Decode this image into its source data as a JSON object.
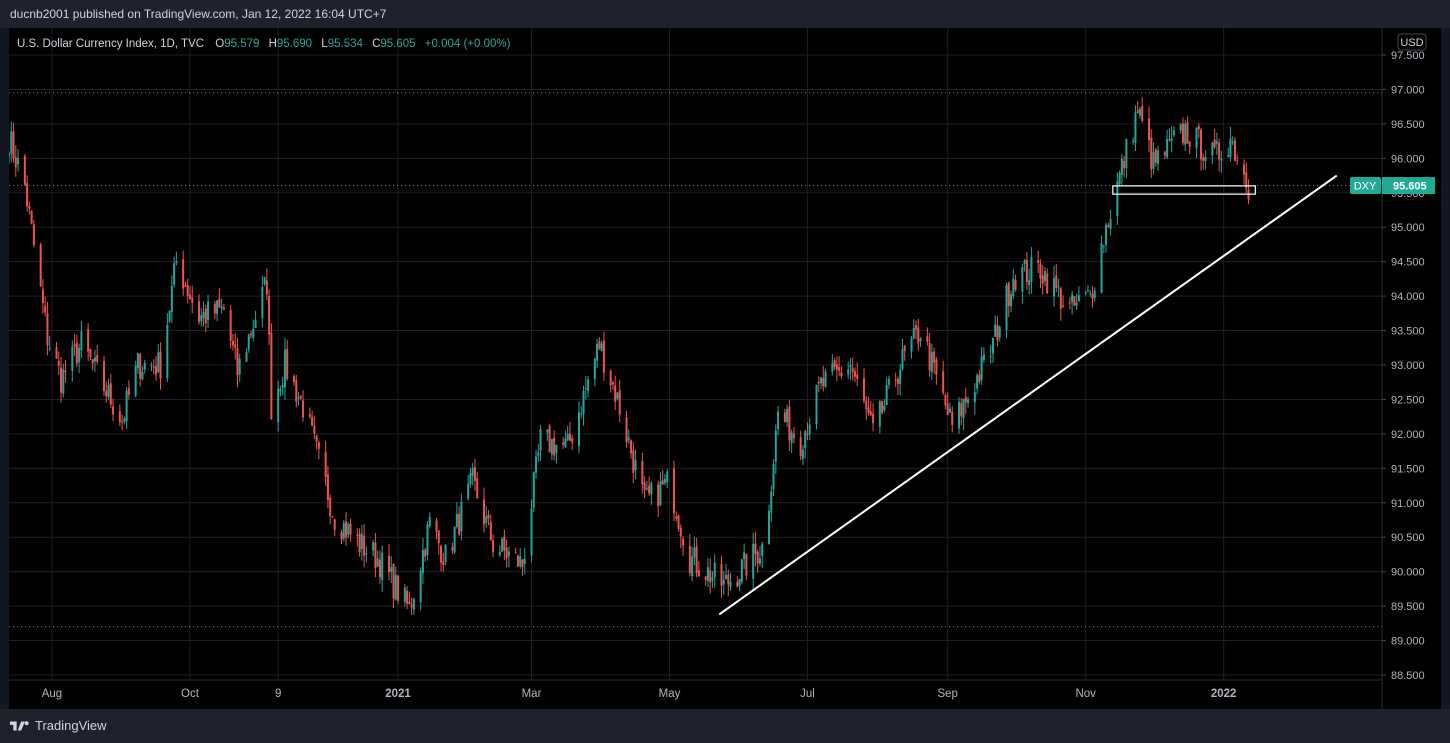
{
  "header": {
    "publisher_line": "ducnb2001 published on TradingView.com, Jan 12, 2022 16:04 UTC+7"
  },
  "legend": {
    "symbol": "U.S. Dollar Currency Index, 1D, TVC",
    "o_label": "O",
    "o_value": "95.579",
    "h_label": "H",
    "h_value": "95.690",
    "l_label": "L",
    "l_value": "95.534",
    "c_label": "C",
    "c_value": "95.605",
    "change": "+0.004 (+0.00%)"
  },
  "currency_label": "USD",
  "price_tag": {
    "symbol": "DXY",
    "value": "95.605"
  },
  "footer": {
    "brand": "TradingView"
  },
  "colors": {
    "up": "#26a69a",
    "down": "#ef5350",
    "tag": "#22ab94",
    "trendline": "#ffffff",
    "axis_text": "#b2b5be",
    "dotted": "#787b86"
  },
  "chart_data": {
    "type": "candlestick",
    "title": "U.S. Dollar Currency Index, 1D, TVC",
    "ylim": [
      88.5,
      97.5
    ],
    "y_ticks": [
      "97.500",
      "97.000",
      "96.500",
      "96.000",
      "95.500",
      "95.000",
      "94.500",
      "94.000",
      "93.500",
      "93.000",
      "92.500",
      "92.000",
      "91.500",
      "91.000",
      "90.500",
      "90.000",
      "89.500",
      "89.000",
      "88.500"
    ],
    "x_labels": [
      "Aug",
      "Oct",
      "9",
      "2021",
      "Mar",
      "May",
      "Jul",
      "Sep",
      "Nov",
      "2022"
    ],
    "x_label_dates": [
      "2020-08-01",
      "2020-10-01",
      "2020-11-09",
      "2021-01-01",
      "2021-03-01",
      "2021-05-01",
      "2021-07-01",
      "2021-09-01",
      "2021-11-01",
      "2022-01-01"
    ],
    "bold_labels": [
      "2021",
      "2022"
    ],
    "x_range": [
      "2020-07-13",
      "2022-03-12"
    ],
    "horizontal_levels": [
      96.95,
      89.2,
      95.605
    ],
    "last_price": 95.605,
    "trendline": {
      "start": [
        "2021-05-23",
        89.38
      ],
      "end": [
        "2022-02-20",
        95.75
      ]
    },
    "support_box": {
      "start": "2021-11-13",
      "end": "2022-01-15",
      "top": 95.6,
      "bottom": 95.48
    },
    "series": [
      {
        "waypoints": [
          [
            "2020-07-13",
            96.3
          ],
          [
            "2020-07-20",
            95.6
          ],
          [
            "2020-07-30",
            93.4
          ],
          [
            "2020-08-05",
            92.8
          ],
          [
            "2020-08-14",
            93.3
          ],
          [
            "2020-08-22",
            92.8
          ],
          [
            "2020-09-01",
            92.2
          ],
          [
            "2020-09-08",
            93.0
          ],
          [
            "2020-09-18",
            93.0
          ],
          [
            "2020-09-25",
            94.5
          ],
          [
            "2020-10-05",
            93.7
          ],
          [
            "2020-10-16",
            93.8
          ],
          [
            "2020-10-22",
            92.9
          ],
          [
            "2020-11-04",
            94.2
          ],
          [
            "2020-11-06",
            92.4
          ],
          [
            "2020-11-12",
            93.0
          ],
          [
            "2020-11-20",
            92.4
          ],
          [
            "2020-12-04",
            90.8
          ],
          [
            "2020-12-15",
            90.4
          ],
          [
            "2020-12-23",
            90.2
          ],
          [
            "2021-01-06",
            89.45
          ],
          [
            "2021-01-15",
            90.7
          ],
          [
            "2021-01-22",
            90.2
          ],
          [
            "2021-02-03",
            91.3
          ],
          [
            "2021-02-12",
            90.4
          ],
          [
            "2021-02-25",
            90.1
          ],
          [
            "2021-03-05",
            91.9
          ],
          [
            "2021-03-17",
            91.8
          ],
          [
            "2021-03-31",
            93.3
          ],
          [
            "2021-04-08",
            92.5
          ],
          [
            "2021-04-20",
            91.0
          ],
          [
            "2021-05-01",
            91.3
          ],
          [
            "2021-05-10",
            90.2
          ],
          [
            "2021-05-25",
            89.8
          ],
          [
            "2021-06-04",
            90.1
          ],
          [
            "2021-06-12",
            90.4
          ],
          [
            "2021-06-18",
            92.3
          ],
          [
            "2021-06-28",
            91.9
          ],
          [
            "2021-07-07",
            92.7
          ],
          [
            "2021-07-20",
            93.0
          ],
          [
            "2021-07-30",
            92.0
          ],
          [
            "2021-08-11",
            93.0
          ],
          [
            "2021-08-20",
            93.5
          ],
          [
            "2021-09-03",
            92.1
          ],
          [
            "2021-09-20",
            93.2
          ],
          [
            "2021-09-30",
            94.3
          ],
          [
            "2021-10-12",
            94.4
          ],
          [
            "2021-10-25",
            93.8
          ],
          [
            "2021-11-03",
            94.0
          ],
          [
            "2021-11-10",
            95.0
          ],
          [
            "2021-11-24",
            96.7
          ],
          [
            "2021-12-01",
            95.9
          ],
          [
            "2021-12-15",
            96.4
          ],
          [
            "2021-12-28",
            96.0
          ],
          [
            "2022-01-04",
            96.3
          ],
          [
            "2022-01-12",
            95.6
          ]
        ]
      }
    ]
  }
}
